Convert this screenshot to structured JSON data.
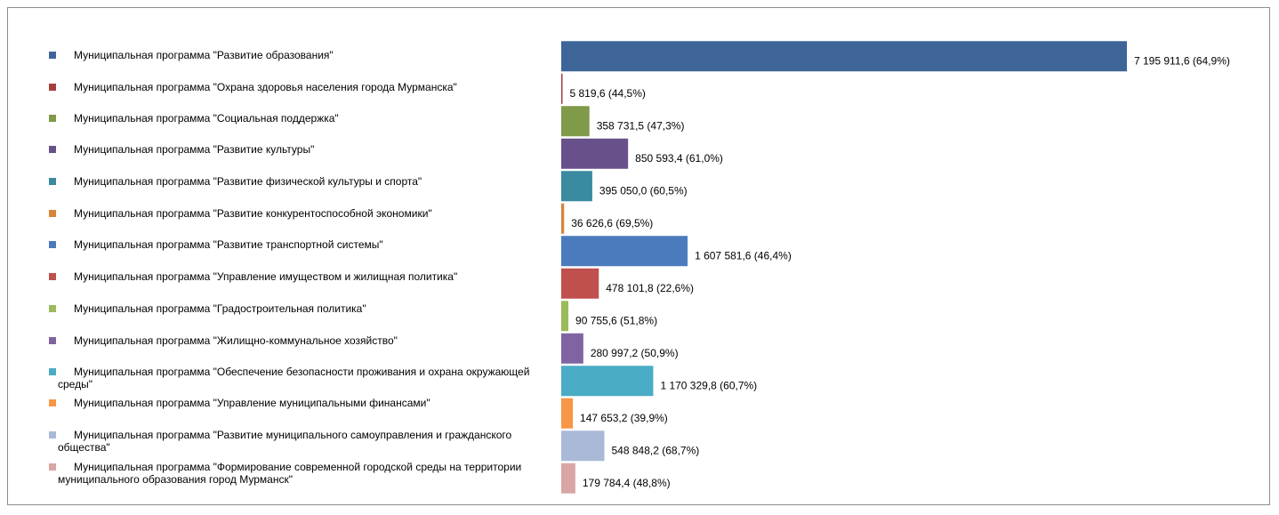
{
  "chart_data": {
    "type": "bar",
    "orientation": "horizontal",
    "legend_position": "left",
    "grid": false,
    "xlim": [
      0,
      7400000
    ],
    "categories": [
      "Муниципальная программа \"Развитие образования\"",
      "Муниципальная программа \"Охрана здоровья населения города Мурманска\"",
      "Муниципальная программа \"Социальная поддержка\"",
      "Муниципальная программа \"Развитие культуры\"",
      "Муниципальная программа \"Развитие физической культуры и спорта\"",
      "Муниципальная программа \"Развитие конкурентоспособной экономики\"",
      "Муниципальная программа \"Развитие транспортной системы\"",
      "Муниципальная программа \"Управление имуществом и жилищная политика\"",
      "Муниципальная программа \"Градостроительная политика\"",
      "Муниципальная программа \"Жилищно-коммунальное хозяйство\"",
      "Муниципальная программа \"Обеспечение безопасности проживания и охрана окружающей среды\"",
      "Муниципальная программа \"Управление муниципальными финансами\"",
      "Муниципальная программа \"Развитие муниципального самоуправления и гражданского общества\"",
      "Муниципальная программа \"Формирование современной городской среды на территории муниципального образования город Мурманск\""
    ],
    "values": [
      7195911.6,
      5819.6,
      358731.5,
      850593.4,
      395050.0,
      36626.6,
      1607581.6,
      478101.8,
      90755.6,
      280997.2,
      1170329.8,
      147653.2,
      548848.2,
      179784.4
    ],
    "percents": [
      64.9,
      44.5,
      47.3,
      61.0,
      60.5,
      69.5,
      46.4,
      22.6,
      51.8,
      50.9,
      60.7,
      39.9,
      68.7,
      48.8
    ],
    "data_labels": [
      "7 195 911,6 (64,9%)",
      "5 819,6 (44,5%)",
      "358 731,5 (47,3%)",
      "850 593,4 (61,0%)",
      "395 050,0 (60,5%)",
      "36 626,6 (69,5%)",
      "1 607 581,6 (46,4%)",
      "478 101,8 (22,6%)",
      "90 755,6 (51,8%)",
      "280 997,2 (50,9%)",
      "1 170 329,8 (60,7%)",
      "147 653,2 (39,9%)",
      "548 848,2 (68,7%)",
      "179 784,4 (48,8%)"
    ],
    "colors": [
      "#3e6598",
      "#a43f3e",
      "#7f9a48",
      "#68518a",
      "#3a8aa0",
      "#d6843a",
      "#4b7bbd",
      "#c0504d",
      "#9bbb59",
      "#8064a2",
      "#4bacc6",
      "#f79646",
      "#aab9d8",
      "#d9a6a5"
    ]
  }
}
